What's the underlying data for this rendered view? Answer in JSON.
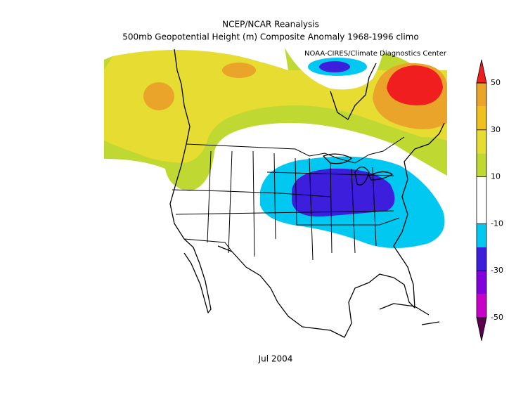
{
  "title": "NCEP/NCAR Reanalysis",
  "subtitle": "500mb Geopotential Height (m) Composite Anomaly 1968-1996 climo",
  "credit": "NOAA-CIRES/Climate Diagnostics Center",
  "date_label": "Jul 2004",
  "colorbar": {
    "ticks": [
      50,
      30,
      10,
      -10,
      -30,
      -50
    ],
    "colors": [
      "#eba42a",
      "#f0c020",
      "#e6dc32",
      "#c0d832",
      "#ffffff",
      "#ffffff",
      "#00c8f0",
      "#3c1edc",
      "#8200dc",
      "#c800c8"
    ],
    "over_color": "#f01e1e",
    "under_color": "#5a0050"
  }
}
